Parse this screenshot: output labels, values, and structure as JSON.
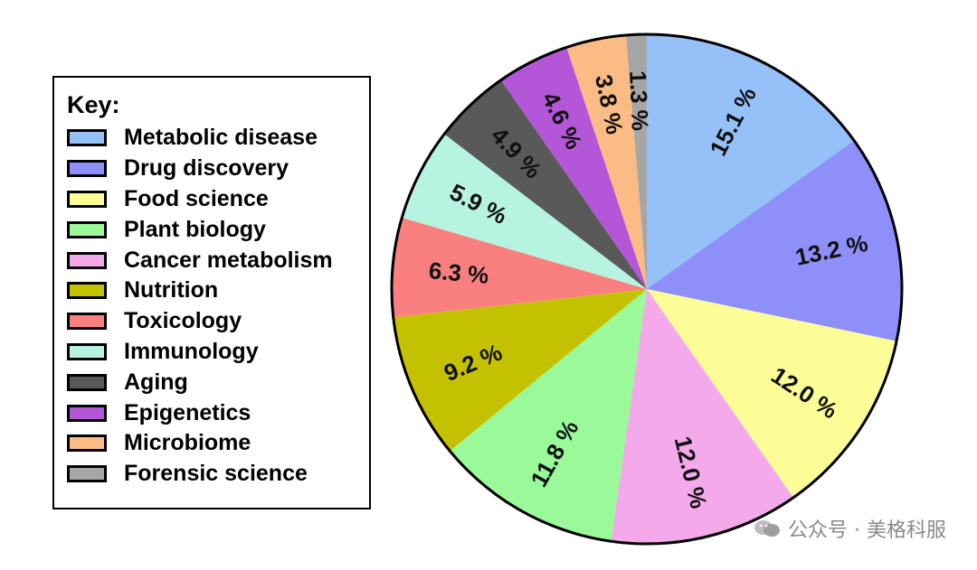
{
  "legend": {
    "title": "Key:"
  },
  "chart_data": {
    "type": "pie",
    "title": "",
    "start": "top",
    "direction": "clockwise",
    "slices": [
      {
        "label": "Metabolic disease",
        "value": 15.1,
        "value_label": "15.1 %",
        "color": "#95c1f8"
      },
      {
        "label": "Drug discovery",
        "value": 13.2,
        "value_label": "13.2 %",
        "color": "#8f8ffa"
      },
      {
        "label": "Food science",
        "value": 12.0,
        "value_label": "12.0 %",
        "color": "#fdfd98"
      },
      {
        "label": "Cancer metabolism",
        "value": 12.0,
        "value_label": "12.0 %",
        "color": "#f4a9ea"
      },
      {
        "label": "Plant biology",
        "value": 11.8,
        "value_label": "11.8 %",
        "color": "#9afa9a"
      },
      {
        "label": "Nutrition",
        "value": 9.2,
        "value_label": "9.2 %",
        "color": "#c4c200"
      },
      {
        "label": "Toxicology",
        "value": 6.3,
        "value_label": "6.3 %",
        "color": "#fa8080"
      },
      {
        "label": "Immunology",
        "value": 5.9,
        "value_label": "5.9 %",
        "color": "#b6f3e0"
      },
      {
        "label": "Aging",
        "value": 4.9,
        "value_label": "4.9 %",
        "color": "#595959"
      },
      {
        "label": "Epigenetics",
        "value": 4.6,
        "value_label": "4.6 %",
        "color": "#b356d8"
      },
      {
        "label": "Microbiome",
        "value": 3.8,
        "value_label": "3.8 %",
        "color": "#fbbb84"
      },
      {
        "label": "Forensic science",
        "value": 1.3,
        "value_label": "1.3 %",
        "color": "#a6a6a6"
      }
    ],
    "legend_order": [
      "Metabolic disease",
      "Drug discovery",
      "Food science",
      "Plant biology",
      "Cancer metabolism",
      "Nutrition",
      "Toxicology",
      "Immunology",
      "Aging",
      "Epigenetics",
      "Microbiome",
      "Forensic science"
    ],
    "legend_placement": "left"
  },
  "watermark": {
    "text": "公众号 · 美格科服"
  }
}
